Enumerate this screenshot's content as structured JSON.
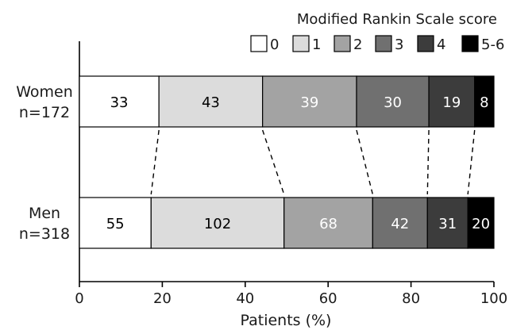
{
  "chart_data": {
    "type": "bar",
    "orientation": "horizontal",
    "stacked": true,
    "normalized_percent": true,
    "xlabel": "Patients (%)",
    "xlim": [
      0,
      100
    ],
    "xticks": [
      "0",
      "20",
      "40",
      "60",
      "80",
      "100"
    ],
    "legend": {
      "title": "Modified Rankin Scale score",
      "placement": "top-right",
      "entries": [
        "0",
        "1",
        "2",
        "3",
        "4",
        "5-6"
      ]
    },
    "series_colors": [
      "#ffffff",
      "#dcdcdc",
      "#a3a3a3",
      "#707070",
      "#3c3c3c",
      "#000000"
    ],
    "label_colors": [
      "#000000",
      "#000000",
      "#ffffff",
      "#ffffff",
      "#ffffff",
      "#ffffff"
    ],
    "groups": [
      {
        "name": "Women",
        "n": "n=172",
        "counts": [
          33,
          43,
          39,
          30,
          19,
          8
        ]
      },
      {
        "name": "Men",
        "n": "n=318",
        "counts": [
          55,
          102,
          68,
          42,
          31,
          20
        ]
      }
    ],
    "grid": false
  }
}
